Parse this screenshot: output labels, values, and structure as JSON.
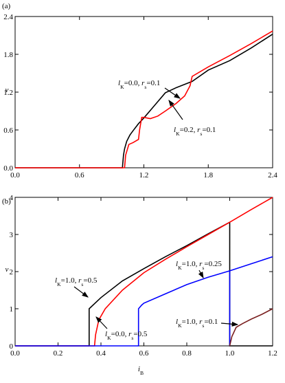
{
  "chart_data": [
    {
      "type": "line",
      "label": "(a)",
      "ylabel": "v",
      "xlim": [
        0,
        2.4
      ],
      "ylim": [
        0,
        2.4
      ],
      "xticks": [
        {
          "value": 0,
          "label": "0.0"
        },
        {
          "value": 0.6,
          "label": "0.6"
        },
        {
          "value": 1.2,
          "label": "1.2"
        },
        {
          "value": 1.8,
          "label": "1.8"
        },
        {
          "value": 2.4,
          "label": "2.4"
        }
      ],
      "yticks": [
        {
          "value": 0,
          "label": "0.0"
        },
        {
          "value": 0.6,
          "label": "0.6"
        },
        {
          "value": 1.2,
          "label": "1.2"
        },
        {
          "value": 1.8,
          "label": "1.8"
        },
        {
          "value": 2.4,
          "label": "2.4"
        }
      ],
      "series": [
        {
          "color": "#000000",
          "x": [
            0,
            1.0,
            1.01,
            1.02,
            1.04,
            1.07,
            1.1,
            1.15,
            1.2,
            1.3,
            1.4,
            1.5,
            1.65,
            1.8,
            2.0,
            2.2,
            2.4
          ],
          "values": [
            0,
            0,
            0.2,
            0.3,
            0.42,
            0.52,
            0.59,
            0.7,
            0.79,
            0.99,
            1.19,
            1.27,
            1.37,
            1.55,
            1.7,
            1.9,
            2.12
          ]
        },
        {
          "color": "#ff0000",
          "x": [
            0,
            1.02,
            1.03,
            1.06,
            1.1,
            1.15,
            1.16,
            1.18,
            1.2,
            1.26,
            1.33,
            1.4,
            1.5,
            1.58,
            1.63,
            1.65,
            1.8,
            2.0,
            2.2,
            2.4
          ],
          "values": [
            0,
            0,
            0.2,
            0.37,
            0.4,
            0.45,
            0.6,
            0.8,
            0.8,
            0.78,
            0.82,
            0.9,
            1.02,
            1.14,
            1.3,
            1.45,
            1.6,
            1.78,
            1.97,
            2.17
          ]
        }
      ],
      "annotations": [
        {
          "parts": [
            {
              "text": "l",
              "style": "italic"
            },
            {
              "sub": "K"
            },
            {
              "text": "=0.0, "
            },
            {
              "text": "r",
              "style": "italic"
            },
            {
              "sub": "s"
            },
            {
              "text": "=0.1"
            }
          ]
        },
        {
          "parts": [
            {
              "text": "l",
              "style": "italic"
            },
            {
              "sub": "K"
            },
            {
              "text": "=0.2, "
            },
            {
              "text": "r",
              "style": "italic"
            },
            {
              "sub": "s"
            },
            {
              "text": "=0.1"
            }
          ]
        }
      ]
    },
    {
      "type": "line",
      "label": "(b)",
      "ylabel": "v",
      "xlabel": [
        {
          "text": "i",
          "style": "italic"
        },
        {
          "sub": "B"
        }
      ],
      "xlim": [
        0,
        1.2
      ],
      "ylim": [
        0,
        4
      ],
      "xticks": [
        {
          "value": 0,
          "label": "0.0"
        },
        {
          "value": 0.2,
          "label": "0.2"
        },
        {
          "value": 0.4,
          "label": "0.4"
        },
        {
          "value": 0.6,
          "label": "0.6"
        },
        {
          "value": 0.8,
          "label": "0.8"
        },
        {
          "value": 1.0,
          "label": "1.0"
        },
        {
          "value": 1.2,
          "label": "1.2"
        }
      ],
      "yticks": [
        0,
        1,
        2,
        3,
        4
      ],
      "series": [
        {
          "color": "#000000",
          "x": [
            0,
            0.345,
            0.345,
            0.4,
            0.5,
            0.6,
            0.7,
            0.8,
            0.9,
            1.0,
            1.0,
            1.2
          ],
          "values": [
            0,
            0,
            1.0,
            1.3,
            1.75,
            2.08,
            2.4,
            2.7,
            3.02,
            3.33,
            0,
            0
          ]
        },
        {
          "color": "#ff0000",
          "x": [
            0,
            0.37,
            0.375,
            0.39,
            0.42,
            0.5,
            0.6,
            0.7,
            0.8,
            0.9,
            1.0,
            1.1,
            1.2
          ],
          "values": [
            0,
            0,
            0.3,
            0.7,
            1.0,
            1.5,
            1.97,
            2.33,
            2.67,
            3.0,
            3.33,
            3.67,
            4.0
          ]
        },
        {
          "color": "#0000ff",
          "x": [
            0,
            0.575,
            0.575,
            0.59,
            0.6,
            0.7,
            0.8,
            0.9,
            1.0,
            1.1,
            1.2,
            null,
            1.0,
            1.0
          ],
          "values": [
            0,
            0,
            1.0,
            1.1,
            1.15,
            1.4,
            1.65,
            1.85,
            2.02,
            2.21,
            2.4,
            null,
            2.02,
            0
          ]
        },
        {
          "color": "#7a1f1f",
          "x": [
            1.0,
            1.01,
            1.03,
            1.06,
            1.1,
            1.15,
            1.2
          ],
          "values": [
            0,
            0.25,
            0.5,
            0.6,
            0.72,
            0.85,
            1.0
          ]
        }
      ],
      "annotations": [
        {
          "parts": [
            {
              "text": "l",
              "style": "italic"
            },
            {
              "sub": "K"
            },
            {
              "text": "=1.0, "
            },
            {
              "text": "r",
              "style": "italic"
            },
            {
              "sub": "s"
            },
            {
              "text": "=0.5"
            }
          ]
        },
        {
          "parts": [
            {
              "text": "l",
              "style": "italic"
            },
            {
              "sub": "K"
            },
            {
              "text": "=0.0, "
            },
            {
              "text": "r",
              "style": "italic"
            },
            {
              "sub": "s"
            },
            {
              "text": "=0.5"
            }
          ]
        },
        {
          "parts": [
            {
              "text": "l",
              "style": "italic"
            },
            {
              "sub": "K"
            },
            {
              "text": "=1.0, "
            },
            {
              "text": "r",
              "style": "italic"
            },
            {
              "sub": "s"
            },
            {
              "text": "=0.25"
            }
          ]
        },
        {
          "parts": [
            {
              "text": "l",
              "style": "italic"
            },
            {
              "sub": "K"
            },
            {
              "text": "=1.0, "
            },
            {
              "text": "r",
              "style": "italic"
            },
            {
              "sub": "s"
            },
            {
              "text": "=0.1"
            }
          ]
        }
      ]
    }
  ]
}
